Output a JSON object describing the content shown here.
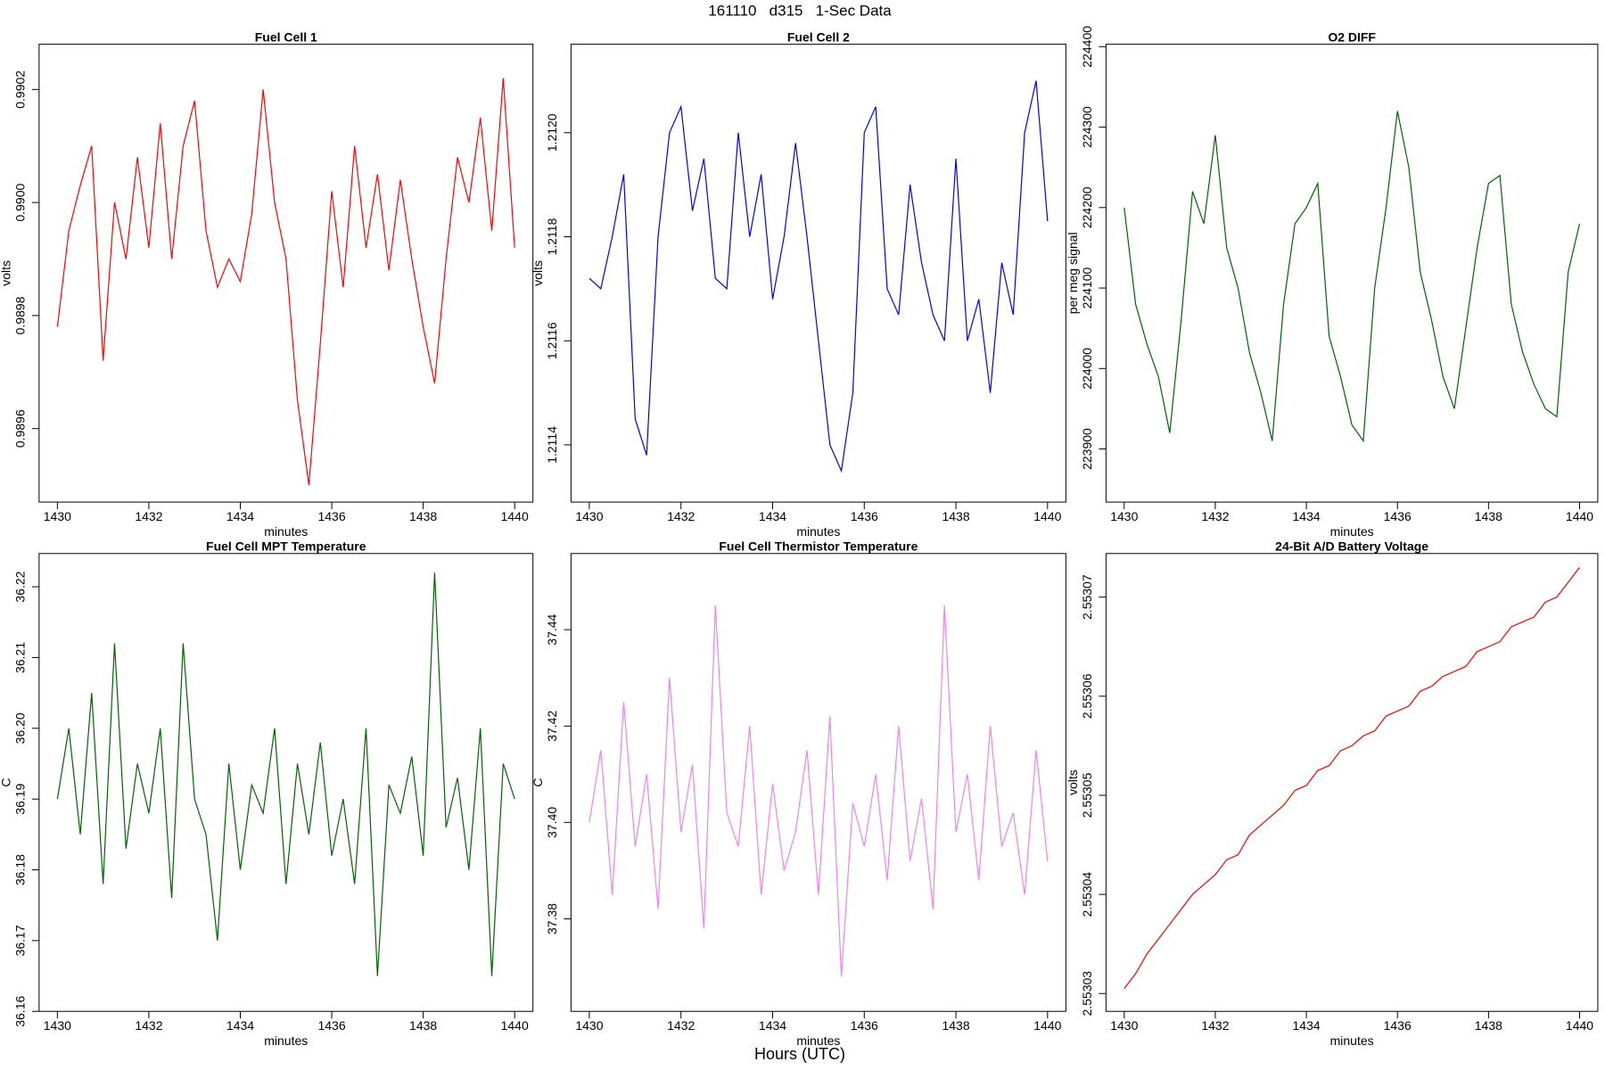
{
  "title": "161110   d315   1-Sec Data",
  "footer": "Hours (UTC)",
  "chart_data": [
    {
      "type": "line",
      "title": "Fuel Cell 1",
      "xlabel": "minutes",
      "ylabel": "volts",
      "color": "#ff0000",
      "xlim": [
        1429.6,
        1440.4
      ],
      "xticks": [
        1430,
        1432,
        1434,
        1436,
        1438,
        1440
      ],
      "ylim": [
        0.98947,
        0.99028
      ],
      "yticks": [
        0.9896,
        0.9898,
        {
          "value": 0.99,
          "label": "0.9900"
        },
        0.9902
      ],
      "x": [
        1430,
        1430.25,
        1430.5,
        1430.75,
        1431,
        1431.25,
        1431.5,
        1431.75,
        1432,
        1432.25,
        1432.5,
        1432.75,
        1433,
        1433.25,
        1433.5,
        1433.75,
        1434,
        1434.25,
        1434.5,
        1434.75,
        1435,
        1435.25,
        1435.5,
        1435.75,
        1436,
        1436.25,
        1436.5,
        1436.75,
        1437,
        1437.25,
        1437.5,
        1437.75,
        1438,
        1438.25,
        1438.5,
        1438.75,
        1439,
        1439.25,
        1439.5,
        1439.75,
        1440
      ],
      "values": [
        0.98978,
        0.98995,
        0.99003,
        0.9901,
        0.98972,
        0.99,
        0.9899,
        0.99008,
        0.98992,
        0.99014,
        0.9899,
        0.9901,
        0.99018,
        0.98995,
        0.98985,
        0.9899,
        0.98986,
        0.98998,
        0.9902,
        0.99,
        0.9899,
        0.98965,
        0.9895,
        0.98975,
        0.99002,
        0.98985,
        0.9901,
        0.98992,
        0.99005,
        0.98988,
        0.99004,
        0.9899,
        0.98978,
        0.98968,
        0.9899,
        0.99008,
        0.99,
        0.99015,
        0.98995,
        0.99022,
        0.98992
      ]
    },
    {
      "type": "line",
      "title": "Fuel Cell 2",
      "xlabel": "minutes",
      "ylabel": "volts",
      "color": "#0000ff",
      "xlim": [
        1429.6,
        1440.4
      ],
      "xticks": [
        1430,
        1432,
        1434,
        1436,
        1438,
        1440
      ],
      "ylim": [
        1.21129,
        1.21217
      ],
      "yticks": [
        1.2114,
        1.2116,
        1.2118,
        {
          "value": 1.212,
          "label": "1.2120"
        }
      ],
      "x": [
        1430,
        1430.25,
        1430.5,
        1430.75,
        1431,
        1431.25,
        1431.5,
        1431.75,
        1432,
        1432.25,
        1432.5,
        1432.75,
        1433,
        1433.25,
        1433.5,
        1433.75,
        1434,
        1434.25,
        1434.5,
        1434.75,
        1435,
        1435.25,
        1435.5,
        1435.75,
        1436,
        1436.25,
        1436.5,
        1436.75,
        1437,
        1437.25,
        1437.5,
        1437.75,
        1438,
        1438.25,
        1438.5,
        1438.75,
        1439,
        1439.25,
        1439.5,
        1439.75,
        1440
      ],
      "values": [
        1.21172,
        1.2117,
        1.2118,
        1.21192,
        1.21145,
        1.21138,
        1.2118,
        1.212,
        1.21205,
        1.21185,
        1.21195,
        1.21172,
        1.2117,
        1.212,
        1.2118,
        1.21192,
        1.21168,
        1.2118,
        1.21198,
        1.2118,
        1.2116,
        1.2114,
        1.21135,
        1.2115,
        1.212,
        1.21205,
        1.2117,
        1.21165,
        1.2119,
        1.21175,
        1.21165,
        1.2116,
        1.21195,
        1.2116,
        1.21168,
        1.2115,
        1.21175,
        1.21165,
        1.212,
        1.2121,
        1.21183
      ]
    },
    {
      "type": "line",
      "title": "O2 DIFF",
      "xlabel": "minutes",
      "ylabel": "per meg signal",
      "color": "#006400",
      "xlim": [
        1429.6,
        1440.4
      ],
      "xticks": [
        1430,
        1432,
        1434,
        1436,
        1438,
        1440
      ],
      "ylim": [
        223834,
        224403
      ],
      "yticks": [
        223900,
        224000,
        224100,
        224200,
        224300,
        224400
      ],
      "x": [
        1430,
        1430.25,
        1430.5,
        1430.75,
        1431,
        1431.25,
        1431.5,
        1431.75,
        1432,
        1432.25,
        1432.5,
        1432.75,
        1433,
        1433.25,
        1433.5,
        1433.75,
        1434,
        1434.25,
        1434.5,
        1434.75,
        1435,
        1435.25,
        1435.5,
        1435.75,
        1436,
        1436.25,
        1436.5,
        1436.75,
        1437,
        1437.25,
        1437.5,
        1437.75,
        1438,
        1438.25,
        1438.5,
        1438.75,
        1439,
        1439.25,
        1439.5,
        1439.75,
        1440
      ],
      "values": [
        224200,
        224080,
        224030,
        223990,
        223920,
        224060,
        224220,
        224180,
        224290,
        224150,
        224100,
        224020,
        223970,
        223910,
        224080,
        224180,
        224200,
        224230,
        224040,
        223990,
        223930,
        223910,
        224100,
        224200,
        224320,
        224250,
        224120,
        224060,
        223990,
        223950,
        224050,
        224150,
        224230,
        224240,
        224080,
        224020,
        223980,
        223950,
        223940,
        224120,
        224180
      ]
    },
    {
      "type": "line",
      "title": "Fuel Cell MPT Temperature",
      "xlabel": "minutes",
      "ylabel": "C",
      "color": "#006400",
      "xlim": [
        1429.6,
        1440.4
      ],
      "xticks": [
        1430,
        1432,
        1434,
        1436,
        1438,
        1440
      ],
      "ylim": [
        36.16,
        36.2247
      ],
      "yticks": [
        36.16,
        36.17,
        36.18,
        36.19,
        {
          "value": 36.2,
          "label": "36.20"
        },
        36.21,
        36.22
      ],
      "x": [
        1430,
        1430.25,
        1430.5,
        1430.75,
        1431,
        1431.25,
        1431.5,
        1431.75,
        1432,
        1432.25,
        1432.5,
        1432.75,
        1433,
        1433.25,
        1433.5,
        1433.75,
        1434,
        1434.25,
        1434.5,
        1434.75,
        1435,
        1435.25,
        1435.5,
        1435.75,
        1436,
        1436.25,
        1436.5,
        1436.75,
        1437,
        1437.25,
        1437.5,
        1437.75,
        1438,
        1438.25,
        1438.5,
        1438.75,
        1439,
        1439.25,
        1439.5,
        1439.75,
        1440
      ],
      "values": [
        36.19,
        36.2,
        36.185,
        36.205,
        36.178,
        36.212,
        36.183,
        36.195,
        36.188,
        36.2,
        36.176,
        36.212,
        36.19,
        36.185,
        36.17,
        36.195,
        36.18,
        36.192,
        36.188,
        36.2,
        36.178,
        36.195,
        36.185,
        36.198,
        36.182,
        36.19,
        36.178,
        36.2,
        36.165,
        36.192,
        36.188,
        36.196,
        36.182,
        36.222,
        36.186,
        36.193,
        36.18,
        36.2,
        36.165,
        36.195,
        36.19
      ]
    },
    {
      "type": "line",
      "title": "Fuel Cell Thermistor Temperature",
      "xlabel": "minutes",
      "ylabel": "C",
      "color": "#ee82ee",
      "xlim": [
        1429.6,
        1440.4
      ],
      "xticks": [
        1430,
        1432,
        1434,
        1436,
        1438,
        1440
      ],
      "ylim": [
        37.3608,
        37.4558
      ],
      "yticks": [
        37.38,
        {
          "value": 37.4,
          "label": "37.40"
        },
        37.42,
        37.44
      ],
      "x": [
        1430,
        1430.25,
        1430.5,
        1430.75,
        1431,
        1431.25,
        1431.5,
        1431.75,
        1432,
        1432.25,
        1432.5,
        1432.75,
        1433,
        1433.25,
        1433.5,
        1433.75,
        1434,
        1434.25,
        1434.5,
        1434.75,
        1435,
        1435.25,
        1435.5,
        1435.75,
        1436,
        1436.25,
        1436.5,
        1436.75,
        1437,
        1437.25,
        1437.5,
        1437.75,
        1438,
        1438.25,
        1438.5,
        1438.75,
        1439,
        1439.25,
        1439.5,
        1439.75,
        1440
      ],
      "values": [
        37.4,
        37.415,
        37.385,
        37.425,
        37.395,
        37.41,
        37.382,
        37.43,
        37.398,
        37.412,
        37.378,
        37.445,
        37.402,
        37.395,
        37.42,
        37.385,
        37.408,
        37.39,
        37.398,
        37.415,
        37.385,
        37.422,
        37.368,
        37.404,
        37.395,
        37.41,
        37.388,
        37.42,
        37.392,
        37.405,
        37.382,
        37.445,
        37.398,
        37.41,
        37.388,
        37.42,
        37.395,
        37.402,
        37.385,
        37.415,
        37.392
      ]
    },
    {
      "type": "line",
      "title": "24-Bit A/D Battery Voltage",
      "xlabel": "minutes",
      "ylabel": "volts",
      "color": "#ff0000",
      "xlim": [
        1429.6,
        1440.4
      ],
      "xticks": [
        1430,
        1432,
        1434,
        1436,
        1438,
        1440
      ],
      "ylim": [
        2.5530282,
        2.5530744
      ],
      "yticks": [
        2.55303,
        2.55304,
        2.55305,
        2.55306,
        2.55307
      ],
      "x": [
        1430,
        1430.25,
        1430.5,
        1430.75,
        1431,
        1431.25,
        1431.5,
        1431.75,
        1432,
        1432.25,
        1432.5,
        1432.75,
        1433,
        1433.25,
        1433.5,
        1433.75,
        1434,
        1434.25,
        1434.5,
        1434.75,
        1435,
        1435.25,
        1435.5,
        1435.75,
        1436,
        1436.25,
        1436.5,
        1436.75,
        1437,
        1437.25,
        1437.5,
        1437.75,
        1438,
        1438.25,
        1438.5,
        1438.75,
        1439,
        1439.25,
        1439.5,
        1439.75,
        1440
      ],
      "values": [
        2.5530305,
        2.553032,
        2.553034,
        2.5530355,
        2.553037,
        2.5530385,
        2.55304,
        2.553041,
        2.553042,
        2.5530435,
        2.553044,
        2.553046,
        2.553047,
        2.553048,
        2.553049,
        2.5530505,
        2.553051,
        2.5530525,
        2.553053,
        2.5530545,
        2.553055,
        2.553056,
        2.5530565,
        2.553058,
        2.5530585,
        2.553059,
        2.5530605,
        2.553061,
        2.553062,
        2.5530625,
        2.553063,
        2.5530645,
        2.553065,
        2.5530655,
        2.553067,
        2.5530675,
        2.553068,
        2.5530695,
        2.55307,
        2.5530715,
        2.553073
      ]
    }
  ]
}
